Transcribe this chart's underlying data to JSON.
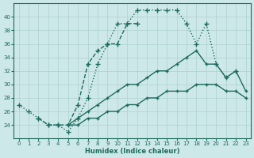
{
  "xlabel": "Humidex (Indice chaleur)",
  "background_color": "#cde8e8",
  "grid_color": "#aed0d0",
  "line_color": "#1e6b5e",
  "xlim": [
    -0.5,
    23.5
  ],
  "ylim": [
    22,
    42
  ],
  "yticks": [
    24,
    26,
    28,
    30,
    32,
    34,
    36,
    38,
    40
  ],
  "xticks": [
    0,
    1,
    2,
    3,
    4,
    5,
    6,
    7,
    8,
    9,
    10,
    11,
    12,
    13,
    14,
    15,
    16,
    17,
    18,
    19,
    20,
    21,
    22,
    23
  ],
  "lines": [
    {
      "x": [
        0,
        1,
        2,
        3,
        4,
        5,
        6,
        7,
        8,
        9,
        10,
        11,
        12,
        13,
        14,
        15,
        16,
        17,
        18,
        19,
        20,
        21,
        22
      ],
      "y": [
        27,
        26,
        25,
        24,
        24,
        23,
        25,
        28,
        33,
        36,
        39,
        39,
        41,
        41,
        41,
        41,
        41,
        39,
        36,
        39,
        33,
        31,
        32
      ],
      "style": ":",
      "marker": "+",
      "markersize": 4,
      "linewidth": 1.0
    },
    {
      "x": [
        2,
        3,
        4,
        5,
        6,
        7,
        8,
        9,
        10,
        11,
        12
      ],
      "y": [
        25,
        24,
        24,
        24,
        27,
        33,
        35,
        36,
        36,
        39,
        39
      ],
      "style": "--",
      "marker": "+",
      "markersize": 4,
      "linewidth": 1.0
    },
    {
      "x": [
        5,
        6,
        7,
        8,
        9,
        10,
        11,
        12,
        13,
        14,
        15,
        16,
        17,
        18,
        19,
        20,
        21,
        22,
        23
      ],
      "y": [
        24,
        25,
        26,
        27,
        28,
        29,
        30,
        30,
        31,
        32,
        32,
        33,
        34,
        35,
        33,
        33,
        31,
        32,
        29
      ],
      "style": "-",
      "marker": "+",
      "markersize": 3,
      "linewidth": 1.0
    },
    {
      "x": [
        5,
        6,
        7,
        8,
        9,
        10,
        11,
        12,
        13,
        14,
        15,
        16,
        17,
        18,
        19,
        20,
        21,
        22,
        23
      ],
      "y": [
        24,
        24,
        25,
        25,
        26,
        26,
        27,
        27,
        28,
        28,
        29,
        29,
        29,
        30,
        30,
        30,
        29,
        29,
        28
      ],
      "style": "-",
      "marker": "+",
      "markersize": 3,
      "linewidth": 1.0
    }
  ]
}
